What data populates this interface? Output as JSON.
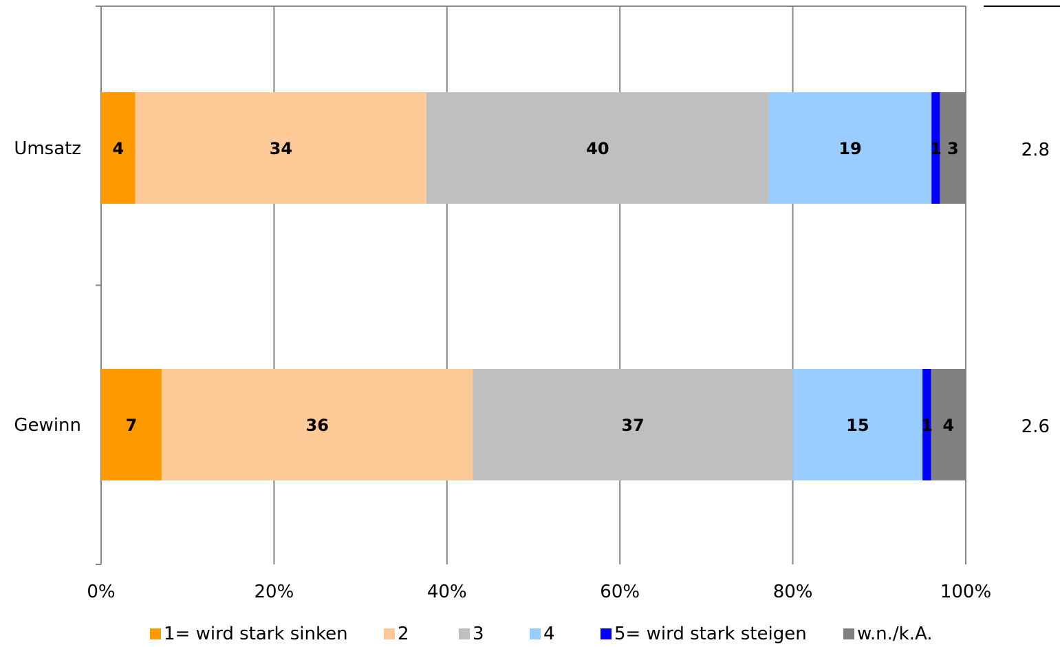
{
  "chart_data": {
    "type": "bar",
    "orientation": "horizontal",
    "stacked": true,
    "normalized": true,
    "categories": [
      "Umsatz",
      "Gewinn"
    ],
    "series": [
      {
        "name": "1= wird stark sinken",
        "color": "#ff9900",
        "values": [
          4,
          7
        ]
      },
      {
        "name": "2",
        "color": "#fdc997",
        "values": [
          34,
          36
        ]
      },
      {
        "name": "3",
        "color": "#bfbfbf",
        "values": [
          40,
          37
        ]
      },
      {
        "name": "4",
        "color": "#99ccff",
        "values": [
          19,
          15
        ]
      },
      {
        "name": "5= wird stark steigen",
        "color": "#0000ff",
        "values": [
          1,
          1
        ]
      },
      {
        "name": "w.n./k.A.",
        "color": "#808080",
        "values": [
          3,
          4
        ]
      }
    ],
    "means": [
      "2.8",
      "2.6"
    ],
    "x_tick_labels": [
      "0%",
      "20%",
      "40%",
      "60%",
      "80%",
      "100%"
    ],
    "xlim": [
      0,
      100
    ],
    "grid": true,
    "legend_position": "bottom"
  }
}
